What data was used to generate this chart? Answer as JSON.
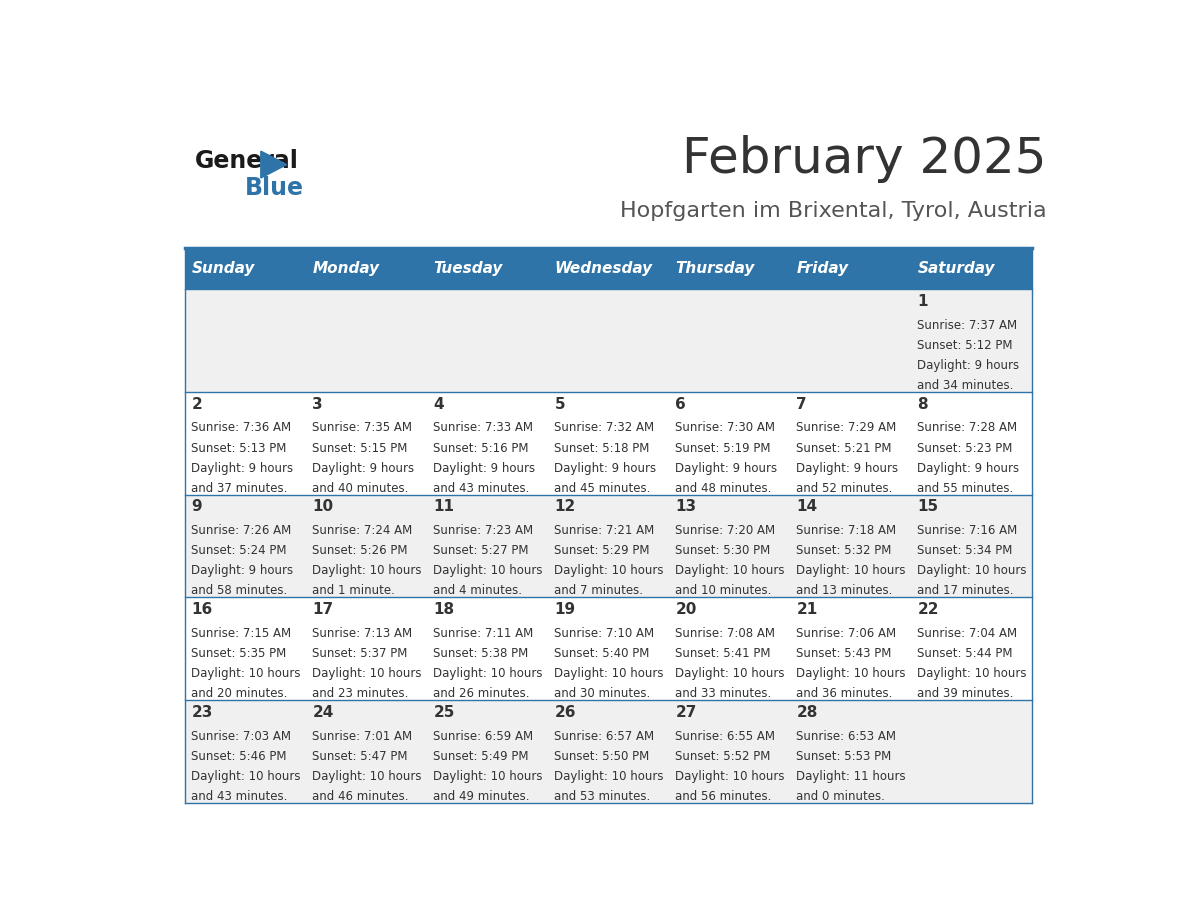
{
  "title": "February 2025",
  "subtitle": "Hopfgarten im Brixental, Tyrol, Austria",
  "header_bg": "#2E74A8",
  "header_text": "#FFFFFF",
  "row_bg_odd": "#F0F0F0",
  "row_bg_even": "#FFFFFF",
  "cell_text": "#333333",
  "border_color": "#2E74A8",
  "days_of_week": [
    "Sunday",
    "Monday",
    "Tuesday",
    "Wednesday",
    "Thursday",
    "Friday",
    "Saturday"
  ],
  "title_color": "#333333",
  "subtitle_color": "#555555",
  "logo_general_color": "#1a1a1a",
  "logo_blue_color": "#2E74A8",
  "logo_triangle_color": "#2E74A8",
  "calendar": [
    [
      null,
      null,
      null,
      null,
      null,
      null,
      {
        "day": 1,
        "sunrise": "7:37 AM",
        "sunset": "5:12 PM",
        "daylight": "9 hours and 34 minutes."
      }
    ],
    [
      {
        "day": 2,
        "sunrise": "7:36 AM",
        "sunset": "5:13 PM",
        "daylight": "9 hours and 37 minutes."
      },
      {
        "day": 3,
        "sunrise": "7:35 AM",
        "sunset": "5:15 PM",
        "daylight": "9 hours and 40 minutes."
      },
      {
        "day": 4,
        "sunrise": "7:33 AM",
        "sunset": "5:16 PM",
        "daylight": "9 hours and 43 minutes."
      },
      {
        "day": 5,
        "sunrise": "7:32 AM",
        "sunset": "5:18 PM",
        "daylight": "9 hours and 45 minutes."
      },
      {
        "day": 6,
        "sunrise": "7:30 AM",
        "sunset": "5:19 PM",
        "daylight": "9 hours and 48 minutes."
      },
      {
        "day": 7,
        "sunrise": "7:29 AM",
        "sunset": "5:21 PM",
        "daylight": "9 hours and 52 minutes."
      },
      {
        "day": 8,
        "sunrise": "7:28 AM",
        "sunset": "5:23 PM",
        "daylight": "9 hours and 55 minutes."
      }
    ],
    [
      {
        "day": 9,
        "sunrise": "7:26 AM",
        "sunset": "5:24 PM",
        "daylight": "9 hours and 58 minutes."
      },
      {
        "day": 10,
        "sunrise": "7:24 AM",
        "sunset": "5:26 PM",
        "daylight": "10 hours and 1 minute."
      },
      {
        "day": 11,
        "sunrise": "7:23 AM",
        "sunset": "5:27 PM",
        "daylight": "10 hours and 4 minutes."
      },
      {
        "day": 12,
        "sunrise": "7:21 AM",
        "sunset": "5:29 PM",
        "daylight": "10 hours and 7 minutes."
      },
      {
        "day": 13,
        "sunrise": "7:20 AM",
        "sunset": "5:30 PM",
        "daylight": "10 hours and 10 minutes."
      },
      {
        "day": 14,
        "sunrise": "7:18 AM",
        "sunset": "5:32 PM",
        "daylight": "10 hours and 13 minutes."
      },
      {
        "day": 15,
        "sunrise": "7:16 AM",
        "sunset": "5:34 PM",
        "daylight": "10 hours and 17 minutes."
      }
    ],
    [
      {
        "day": 16,
        "sunrise": "7:15 AM",
        "sunset": "5:35 PM",
        "daylight": "10 hours and 20 minutes."
      },
      {
        "day": 17,
        "sunrise": "7:13 AM",
        "sunset": "5:37 PM",
        "daylight": "10 hours and 23 minutes."
      },
      {
        "day": 18,
        "sunrise": "7:11 AM",
        "sunset": "5:38 PM",
        "daylight": "10 hours and 26 minutes."
      },
      {
        "day": 19,
        "sunrise": "7:10 AM",
        "sunset": "5:40 PM",
        "daylight": "10 hours and 30 minutes."
      },
      {
        "day": 20,
        "sunrise": "7:08 AM",
        "sunset": "5:41 PM",
        "daylight": "10 hours and 33 minutes."
      },
      {
        "day": 21,
        "sunrise": "7:06 AM",
        "sunset": "5:43 PM",
        "daylight": "10 hours and 36 minutes."
      },
      {
        "day": 22,
        "sunrise": "7:04 AM",
        "sunset": "5:44 PM",
        "daylight": "10 hours and 39 minutes."
      }
    ],
    [
      {
        "day": 23,
        "sunrise": "7:03 AM",
        "sunset": "5:46 PM",
        "daylight": "10 hours and 43 minutes."
      },
      {
        "day": 24,
        "sunrise": "7:01 AM",
        "sunset": "5:47 PM",
        "daylight": "10 hours and 46 minutes."
      },
      {
        "day": 25,
        "sunrise": "6:59 AM",
        "sunset": "5:49 PM",
        "daylight": "10 hours and 49 minutes."
      },
      {
        "day": 26,
        "sunrise": "6:57 AM",
        "sunset": "5:50 PM",
        "daylight": "10 hours and 53 minutes."
      },
      {
        "day": 27,
        "sunrise": "6:55 AM",
        "sunset": "5:52 PM",
        "daylight": "10 hours and 56 minutes."
      },
      {
        "day": 28,
        "sunrise": "6:53 AM",
        "sunset": "5:53 PM",
        "daylight": "11 hours and 0 minutes."
      },
      null
    ]
  ]
}
